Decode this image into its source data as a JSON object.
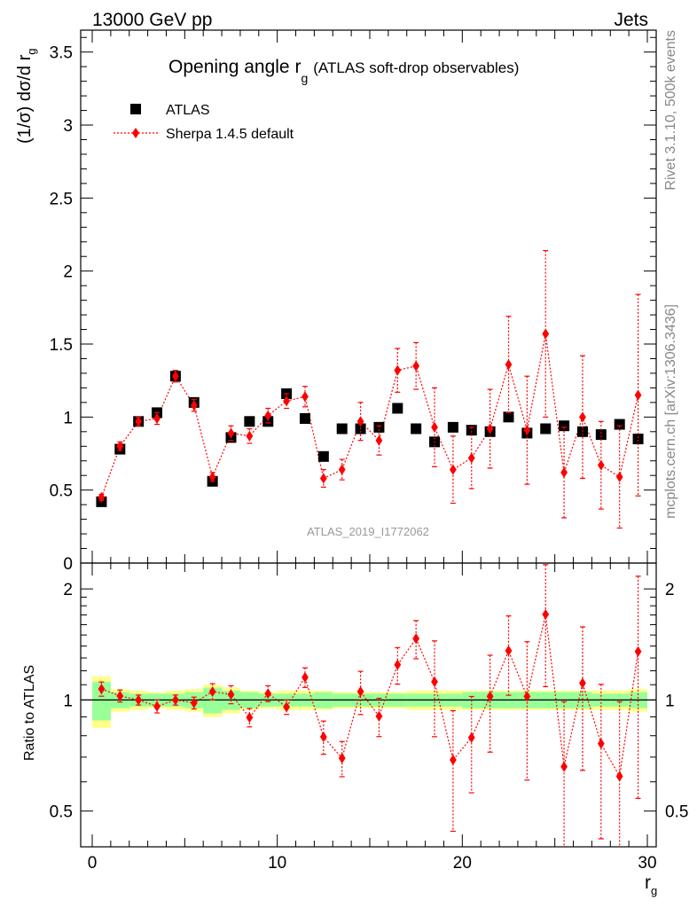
{
  "header": {
    "left": "13000 GeV pp",
    "right": "Jets"
  },
  "title": {
    "main": "Opening angle r",
    "main_sub": "g",
    "suffix": "(ATLAS soft-drop observables)"
  },
  "side_text": {
    "rivet": "Rivet 3.1.10,  500k events",
    "mcplots": "mcplots.cern.ch [arXiv:1306.3436]"
  },
  "analysis_id": "ATLAS_2019_I1772062",
  "legend": {
    "data_label": "ATLAS",
    "mc_label": "Sherpa 1.4.5 default"
  },
  "axes": {
    "main_ylabel": "(1/σ) dσ/d r",
    "main_ylabel_sub": "g",
    "ratio_ylabel": "Ratio to ATLAS",
    "xlabel": "r",
    "xlabel_sub": "g",
    "main_yticks": [
      "0",
      "0.5",
      "1",
      "1.5",
      "2",
      "2.5",
      "3",
      "3.5"
    ],
    "ratio_yticks": [
      "0.5",
      "1",
      "2"
    ],
    "xticks": [
      "0",
      "10",
      "20",
      "30"
    ]
  },
  "colors": {
    "data": "#000000",
    "mc": "#ff0000",
    "band_inner": "#99ff99",
    "band_outer": "#ffff88"
  },
  "chart_data": {
    "type": "scatter",
    "x": [
      0.5,
      1.5,
      2.5,
      3.5,
      4.5,
      5.5,
      6.5,
      7.5,
      8.5,
      9.5,
      10.5,
      11.5,
      12.5,
      13.5,
      14.5,
      15.5,
      16.5,
      17.5,
      18.5,
      19.5,
      20.5,
      21.5,
      22.5,
      23.5,
      24.5,
      25.5,
      26.5,
      27.5,
      28.5,
      29.5
    ],
    "xlim": [
      0,
      30
    ],
    "main_ylim": [
      0,
      3.65
    ],
    "ratio_ylim": [
      0.4,
      2.35
    ],
    "ratio_log": true,
    "series": [
      {
        "name": "ATLAS",
        "values": [
          0.42,
          0.78,
          0.97,
          1.03,
          1.28,
          1.1,
          0.56,
          0.86,
          0.97,
          0.97,
          1.16,
          0.99,
          0.73,
          0.92,
          0.92,
          0.93,
          1.06,
          0.92,
          0.83,
          0.93,
          0.91,
          0.9,
          1.0,
          0.89,
          0.92,
          0.94,
          0.9,
          0.88,
          0.95,
          0.85
        ],
        "band_inner": [
          0.12,
          0.05,
          0.04,
          0.04,
          0.04,
          0.05,
          0.08,
          0.06,
          0.05,
          0.04,
          0.04,
          0.04,
          0.05,
          0.04,
          0.04,
          0.04,
          0.04,
          0.04,
          0.04,
          0.04,
          0.05,
          0.05,
          0.05,
          0.05,
          0.05,
          0.05,
          0.05,
          0.04,
          0.04,
          0.05
        ],
        "band_outer": [
          0.16,
          0.07,
          0.06,
          0.05,
          0.06,
          0.07,
          0.1,
          0.08,
          0.06,
          0.05,
          0.06,
          0.06,
          0.06,
          0.05,
          0.05,
          0.05,
          0.05,
          0.06,
          0.06,
          0.06,
          0.06,
          0.06,
          0.06,
          0.06,
          0.06,
          0.06,
          0.06,
          0.06,
          0.06,
          0.07
        ]
      },
      {
        "name": "Sherpa 1.4.5 default",
        "values": [
          0.45,
          0.8,
          0.97,
          0.99,
          1.28,
          1.08,
          0.59,
          0.89,
          0.87,
          1.01,
          1.11,
          1.14,
          0.58,
          0.64,
          0.97,
          0.84,
          1.32,
          1.35,
          0.93,
          0.64,
          0.72,
          0.92,
          1.36,
          0.91,
          1.57,
          0.62,
          1.0,
          0.67,
          0.59,
          1.15
        ],
        "errors": [
          0.02,
          0.03,
          0.03,
          0.04,
          0.04,
          0.04,
          0.03,
          0.05,
          0.05,
          0.05,
          0.05,
          0.07,
          0.06,
          0.07,
          0.13,
          0.1,
          0.15,
          0.16,
          0.27,
          0.23,
          0.21,
          0.27,
          0.33,
          0.37,
          0.57,
          0.31,
          0.42,
          0.3,
          0.35,
          0.69
        ]
      }
    ]
  }
}
